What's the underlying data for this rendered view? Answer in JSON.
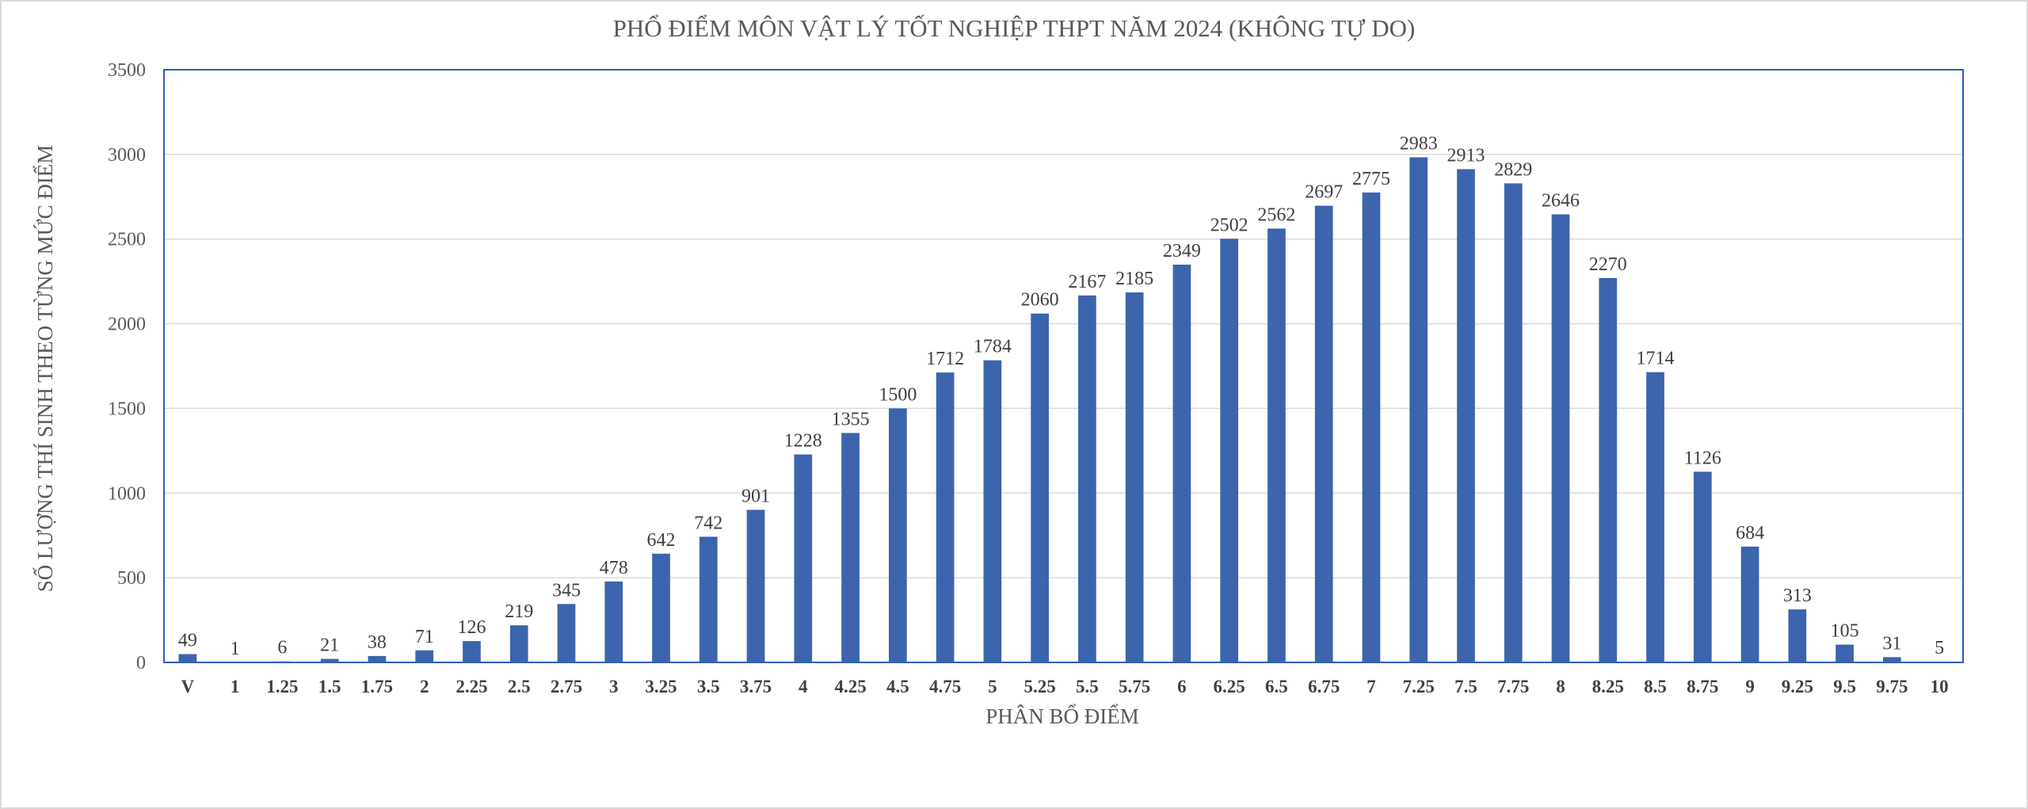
{
  "chart_data": {
    "type": "bar",
    "title": "PHỔ ĐIỂM MÔN VẬT LÝ TỐT NGHIỆP THPT NĂM 2024 (KHÔNG TỰ DO)",
    "xlabel": "PHÂN BỔ ĐIỂM",
    "ylabel": "SỐ LƯỢNG THÍ SINH THEO TỪNG MỨC ĐIỂM",
    "categories": [
      "V",
      "1",
      "1.25",
      "1.5",
      "1.75",
      "2",
      "2.25",
      "2.5",
      "2.75",
      "3",
      "3.25",
      "3.5",
      "3.75",
      "4",
      "4.25",
      "4.5",
      "4.75",
      "5",
      "5.25",
      "5.5",
      "5.75",
      "6",
      "6.25",
      "6.5",
      "6.75",
      "7",
      "7.25",
      "7.5",
      "7.75",
      "8",
      "8.25",
      "8.5",
      "8.75",
      "9",
      "9.25",
      "9.5",
      "9.75",
      "10"
    ],
    "values": [
      49,
      1,
      6,
      21,
      38,
      71,
      126,
      219,
      345,
      478,
      642,
      742,
      901,
      1228,
      1355,
      1500,
      1712,
      1784,
      2060,
      2167,
      2185,
      2349,
      2502,
      2562,
      2697,
      2775,
      2983,
      2913,
      2829,
      2646,
      2270,
      1714,
      1126,
      684,
      313,
      105,
      31,
      5
    ],
    "ylim": [
      0,
      3500
    ],
    "yticks": [
      0,
      500,
      1000,
      1500,
      2000,
      2500,
      3000,
      3500
    ],
    "grid": true,
    "legend": "none",
    "bar_color": "#3C64AD",
    "grid_color": "#D9D9D9",
    "frame_color": "#2F5DB8"
  }
}
